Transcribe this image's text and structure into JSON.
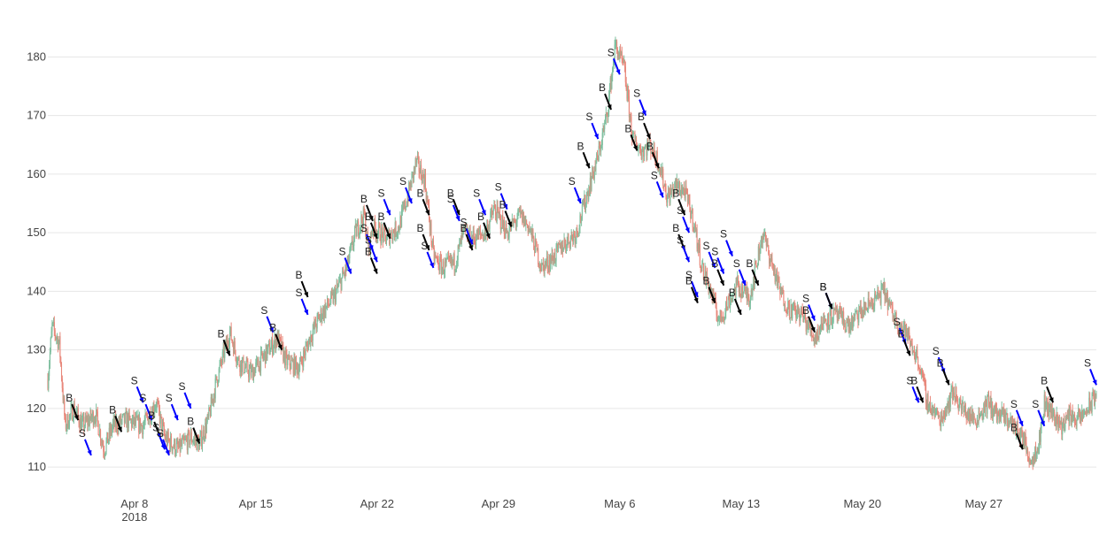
{
  "chart_data": {
    "type": "candlestick",
    "title": "",
    "xlabel": "",
    "ylabel": "",
    "ylim": [
      107,
      187
    ],
    "grid": true,
    "legend": "none",
    "colors": {
      "increasing": "#7fbf9f",
      "decreasing": "#e8877a",
      "buy_arrow": "#000000",
      "sell_arrow": "#0000ff",
      "grid": "#e6e6e6"
    },
    "x_ticks": [
      {
        "x": "2018-04-08",
        "label": "Apr 8",
        "sublabel": "2018"
      },
      {
        "x": "2018-04-15",
        "label": "Apr 15",
        "sublabel": ""
      },
      {
        "x": "2018-04-22",
        "label": "Apr 22",
        "sublabel": ""
      },
      {
        "x": "2018-04-29",
        "label": "Apr 29",
        "sublabel": ""
      },
      {
        "x": "2018-05-06",
        "label": "May 6",
        "sublabel": ""
      },
      {
        "x": "2018-05-13",
        "label": "May 13",
        "sublabel": ""
      },
      {
        "x": "2018-05-20",
        "label": "May 20",
        "sublabel": ""
      },
      {
        "x": "2018-05-27",
        "label": "May 27",
        "sublabel": ""
      }
    ],
    "y_ticks": [
      110,
      120,
      130,
      140,
      150,
      160,
      170,
      180
    ],
    "x_range": [
      "2018-04-03 00:00",
      "2018-06-02 12:00"
    ],
    "price_path": [
      [
        "2018-04-03 00:00",
        125
      ],
      [
        "2018-04-03 06:00",
        134
      ],
      [
        "2018-04-03 16:00",
        131
      ],
      [
        "2018-04-04 00:00",
        117
      ],
      [
        "2018-04-04 12:00",
        120
      ],
      [
        "2018-04-05 00:00",
        117
      ],
      [
        "2018-04-05 18:00",
        119
      ],
      [
        "2018-04-06 06:00",
        113
      ],
      [
        "2018-04-06 18:00",
        117
      ],
      [
        "2018-04-07 12:00",
        118
      ],
      [
        "2018-04-08 12:00",
        117
      ],
      [
        "2018-04-09 06:00",
        121
      ],
      [
        "2018-04-09 18:00",
        115
      ],
      [
        "2018-04-10 12:00",
        113
      ],
      [
        "2018-04-11 06:00",
        115
      ],
      [
        "2018-04-11 18:00",
        114
      ],
      [
        "2018-04-12 06:00",
        118
      ],
      [
        "2018-04-12 18:00",
        125
      ],
      [
        "2018-04-13 12:00",
        133
      ],
      [
        "2018-04-14 00:00",
        128
      ],
      [
        "2018-04-14 18:00",
        126
      ],
      [
        "2018-04-15 12:00",
        129
      ],
      [
        "2018-04-16 06:00",
        132
      ],
      [
        "2018-04-16 18:00",
        128
      ],
      [
        "2018-04-17 12:00",
        127
      ],
      [
        "2018-04-18 06:00",
        133
      ],
      [
        "2018-04-18 18:00",
        136
      ],
      [
        "2018-04-19 12:00",
        139
      ],
      [
        "2018-04-20 06:00",
        144
      ],
      [
        "2018-04-20 18:00",
        150
      ],
      [
        "2018-04-21 06:00",
        153
      ],
      [
        "2018-04-21 12:00",
        147
      ],
      [
        "2018-04-21 18:00",
        151
      ],
      [
        "2018-04-22 12:00",
        149
      ],
      [
        "2018-04-23 06:00",
        151
      ],
      [
        "2018-04-23 18:00",
        156
      ],
      [
        "2018-04-24 06:00",
        162
      ],
      [
        "2018-04-24 18:00",
        159
      ],
      [
        "2018-04-25 06:00",
        146
      ],
      [
        "2018-04-25 18:00",
        144
      ],
      [
        "2018-04-26 12:00",
        145
      ],
      [
        "2018-04-27 00:00",
        150
      ],
      [
        "2018-04-27 12:00",
        149
      ],
      [
        "2018-04-28 06:00",
        150
      ],
      [
        "2018-04-28 18:00",
        154
      ],
      [
        "2018-04-29 12:00",
        150
      ],
      [
        "2018-04-30 06:00",
        153
      ],
      [
        "2018-04-30 18:00",
        151
      ],
      [
        "2018-05-01 12:00",
        144
      ],
      [
        "2018-05-02 06:00",
        146
      ],
      [
        "2018-05-02 18:00",
        148
      ],
      [
        "2018-05-03 12:00",
        150
      ],
      [
        "2018-05-04 06:00",
        158
      ],
      [
        "2018-05-04 18:00",
        163
      ],
      [
        "2018-05-05 06:00",
        170
      ],
      [
        "2018-05-05 18:00",
        182
      ],
      [
        "2018-05-06 06:00",
        178
      ],
      [
        "2018-05-06 18:00",
        166
      ],
      [
        "2018-05-07 06:00",
        164
      ],
      [
        "2018-05-07 18:00",
        165
      ],
      [
        "2018-05-08 06:00",
        162
      ],
      [
        "2018-05-08 18:00",
        156
      ],
      [
        "2018-05-09 06:00",
        158
      ],
      [
        "2018-05-09 18:00",
        157
      ],
      [
        "2018-05-10 06:00",
        152
      ],
      [
        "2018-05-10 18:00",
        144
      ],
      [
        "2018-05-11 06:00",
        140
      ],
      [
        "2018-05-11 18:00",
        135
      ],
      [
        "2018-05-12 06:00",
        138
      ],
      [
        "2018-05-12 18:00",
        141
      ],
      [
        "2018-05-13 12:00",
        139
      ],
      [
        "2018-05-14 06:00",
        150
      ],
      [
        "2018-05-14 18:00",
        145
      ],
      [
        "2018-05-15 06:00",
        140
      ],
      [
        "2018-05-15 18:00",
        137
      ],
      [
        "2018-05-16 12:00",
        136
      ],
      [
        "2018-05-17 06:00",
        132
      ],
      [
        "2018-05-17 18:00",
        135
      ],
      [
        "2018-05-18 12:00",
        136
      ],
      [
        "2018-05-19 06:00",
        134
      ],
      [
        "2018-05-19 18:00",
        136
      ],
      [
        "2018-05-20 12:00",
        138
      ],
      [
        "2018-05-21 06:00",
        140
      ],
      [
        "2018-05-21 18:00",
        136
      ],
      [
        "2018-05-22 12:00",
        133
      ],
      [
        "2018-05-23 06:00",
        128
      ],
      [
        "2018-05-23 18:00",
        121
      ],
      [
        "2018-05-24 12:00",
        118
      ],
      [
        "2018-05-25 06:00",
        123
      ],
      [
        "2018-05-25 18:00",
        120
      ],
      [
        "2018-05-26 12:00",
        118
      ],
      [
        "2018-05-27 06:00",
        121
      ],
      [
        "2018-05-27 18:00",
        119
      ],
      [
        "2018-05-28 12:00",
        118
      ],
      [
        "2018-05-29 06:00",
        115
      ],
      [
        "2018-05-29 18:00",
        111
      ],
      [
        "2018-05-30 06:00",
        115
      ],
      [
        "2018-05-30 12:00",
        121
      ],
      [
        "2018-05-31 00:00",
        119
      ],
      [
        "2018-05-31 12:00",
        117
      ],
      [
        "2018-06-01 00:00",
        119
      ],
      [
        "2018-06-01 12:00",
        118
      ],
      [
        "2018-06-02 06:00",
        121
      ],
      [
        "2018-06-02 12:00",
        123
      ]
    ],
    "trades": [
      {
        "t": "2018-04-04 18:00",
        "price": 118,
        "label": "B"
      },
      {
        "t": "2018-04-05 12:00",
        "price": 112,
        "label": "S"
      },
      {
        "t": "2018-04-07 06:00",
        "price": 116,
        "label": "B"
      },
      {
        "t": "2018-04-08 12:00",
        "price": 121,
        "label": "S"
      },
      {
        "t": "2018-04-09 00:00",
        "price": 118,
        "label": "S"
      },
      {
        "t": "2018-04-09 12:00",
        "price": 115,
        "label": "B"
      },
      {
        "t": "2018-04-09 18:00",
        "price": 113,
        "label": "S"
      },
      {
        "t": "2018-04-10 00:00",
        "price": 112,
        "label": "S"
      },
      {
        "t": "2018-04-10 12:00",
        "price": 118,
        "label": "S"
      },
      {
        "t": "2018-04-11 18:00",
        "price": 114,
        "label": "B"
      },
      {
        "t": "2018-04-11 06:00",
        "price": 120,
        "label": "S"
      },
      {
        "t": "2018-04-13 12:00",
        "price": 129,
        "label": "B"
      },
      {
        "t": "2018-04-16 00:00",
        "price": 133,
        "label": "S"
      },
      {
        "t": "2018-04-16 12:00",
        "price": 130,
        "label": "B"
      },
      {
        "t": "2018-04-18 00:00",
        "price": 139,
        "label": "B"
      },
      {
        "t": "2018-04-18 00:00",
        "price": 136,
        "label": "S"
      },
      {
        "t": "2018-04-20 12:00",
        "price": 143,
        "label": "S"
      },
      {
        "t": "2018-04-21 18:00",
        "price": 152,
        "label": "B"
      },
      {
        "t": "2018-04-21 18:00",
        "price": 147,
        "label": "S"
      },
      {
        "t": "2018-04-22 00:00",
        "price": 149,
        "label": "B"
      },
      {
        "t": "2018-04-22 00:00",
        "price": 145,
        "label": "S"
      },
      {
        "t": "2018-04-22 00:00",
        "price": 143,
        "label": "B"
      },
      {
        "t": "2018-04-22 18:00",
        "price": 153,
        "label": "S"
      },
      {
        "t": "2018-04-22 18:00",
        "price": 149,
        "label": "B"
      },
      {
        "t": "2018-04-24 00:00",
        "price": 155,
        "label": "S"
      },
      {
        "t": "2018-04-25 00:00",
        "price": 153,
        "label": "B"
      },
      {
        "t": "2018-04-25 00:00",
        "price": 147,
        "label": "B"
      },
      {
        "t": "2018-04-25 06:00",
        "price": 144,
        "label": "S"
      },
      {
        "t": "2018-04-26 18:00",
        "price": 153,
        "label": "B"
      },
      {
        "t": "2018-04-26 18:00",
        "price": 152,
        "label": "S"
      },
      {
        "t": "2018-04-27 12:00",
        "price": 148,
        "label": "S"
      },
      {
        "t": "2018-04-27 12:00",
        "price": 147,
        "label": "B"
      },
      {
        "t": "2018-04-28 06:00",
        "price": 153,
        "label": "S"
      },
      {
        "t": "2018-04-28 12:00",
        "price": 149,
        "label": "B"
      },
      {
        "t": "2018-04-29 12:00",
        "price": 154,
        "label": "S"
      },
      {
        "t": "2018-04-29 18:00",
        "price": 151,
        "label": "B"
      },
      {
        "t": "2018-05-03 18:00",
        "price": 155,
        "label": "S"
      },
      {
        "t": "2018-05-04 06:00",
        "price": 161,
        "label": "B"
      },
      {
        "t": "2018-05-04 18:00",
        "price": 166,
        "label": "S"
      },
      {
        "t": "2018-05-05 12:00",
        "price": 171,
        "label": "B"
      },
      {
        "t": "2018-05-06 00:00",
        "price": 177,
        "label": "S"
      },
      {
        "t": "2018-05-07 00:00",
        "price": 164,
        "label": "B"
      },
      {
        "t": "2018-05-07 12:00",
        "price": 170,
        "label": "S"
      },
      {
        "t": "2018-05-07 18:00",
        "price": 166,
        "label": "B"
      },
      {
        "t": "2018-05-08 06:00",
        "price": 161,
        "label": "B"
      },
      {
        "t": "2018-05-08 12:00",
        "price": 156,
        "label": "S"
      },
      {
        "t": "2018-05-09 18:00",
        "price": 153,
        "label": "B"
      },
      {
        "t": "2018-05-09 18:00",
        "price": 147,
        "label": "B"
      },
      {
        "t": "2018-05-10 00:00",
        "price": 150,
        "label": "S"
      },
      {
        "t": "2018-05-10 00:00",
        "price": 145,
        "label": "S"
      },
      {
        "t": "2018-05-10 12:00",
        "price": 139,
        "label": "S"
      },
      {
        "t": "2018-05-10 12:00",
        "price": 138,
        "label": "B"
      },
      {
        "t": "2018-05-11 12:00",
        "price": 138,
        "label": "B"
      },
      {
        "t": "2018-05-11 12:00",
        "price": 144,
        "label": "S"
      },
      {
        "t": "2018-05-12 00:00",
        "price": 141,
        "label": "B"
      },
      {
        "t": "2018-05-12 00:00",
        "price": 143,
        "label": "S"
      },
      {
        "t": "2018-05-12 12:00",
        "price": 146,
        "label": "S"
      },
      {
        "t": "2018-05-13 00:00",
        "price": 136,
        "label": "B"
      },
      {
        "t": "2018-05-13 06:00",
        "price": 141,
        "label": "S"
      },
      {
        "t": "2018-05-14 00:00",
        "price": 141,
        "label": "B"
      },
      {
        "t": "2018-05-17 06:00",
        "price": 135,
        "label": "S"
      },
      {
        "t": "2018-05-17 06:00",
        "price": 133,
        "label": "B"
      },
      {
        "t": "2018-05-18 06:00",
        "price": 137,
        "label": "S"
      },
      {
        "t": "2018-05-18 06:00",
        "price": 137,
        "label": "B"
      },
      {
        "t": "2018-05-22 12:00",
        "price": 131,
        "label": "S"
      },
      {
        "t": "2018-05-22 18:00",
        "price": 129,
        "label": "B"
      },
      {
        "t": "2018-05-23 06:00",
        "price": 121,
        "label": "S"
      },
      {
        "t": "2018-05-23 12:00",
        "price": 121,
        "label": "B"
      },
      {
        "t": "2018-05-24 18:00",
        "price": 126,
        "label": "S"
      },
      {
        "t": "2018-05-25 00:00",
        "price": 124,
        "label": "B"
      },
      {
        "t": "2018-05-29 06:00",
        "price": 117,
        "label": "S"
      },
      {
        "t": "2018-05-29 06:00",
        "price": 113,
        "label": "B"
      },
      {
        "t": "2018-05-30 12:00",
        "price": 117,
        "label": "S"
      },
      {
        "t": "2018-05-31 00:00",
        "price": 121,
        "label": "B"
      },
      {
        "t": "2018-06-02 12:00",
        "price": 124,
        "label": "S"
      }
    ]
  }
}
